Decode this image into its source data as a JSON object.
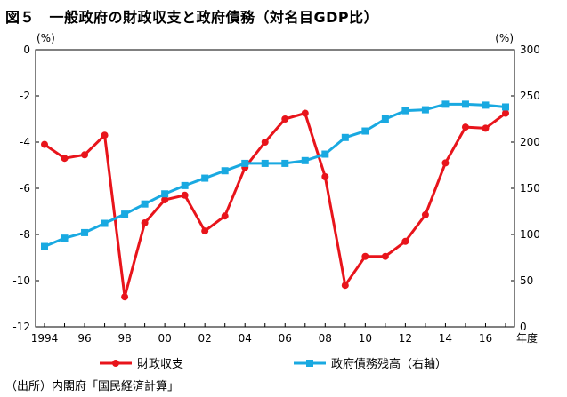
{
  "figure": {
    "title": "図５　一般政府の財政収支と政府債務（対名目GDP比）",
    "source": "（出所）内閣府「国民経済計算」"
  },
  "chart_data": {
    "type": "line",
    "x": [
      1994,
      1995,
      1996,
      1997,
      1998,
      1999,
      2000,
      2001,
      2002,
      2003,
      2004,
      2005,
      2006,
      2007,
      2008,
      2009,
      2010,
      2011,
      2012,
      2013,
      2014,
      2015,
      2016,
      2017
    ],
    "x_tick_labels": [
      "1994",
      "96",
      "98",
      "00",
      "02",
      "04",
      "06",
      "08",
      "10",
      "12",
      "14",
      "16"
    ],
    "x_unit_label": "年度",
    "left_axis": {
      "unit_label": "(%)",
      "ylim": [
        -12,
        0
      ],
      "ticks": [
        0,
        -2,
        -4,
        -6,
        -8,
        -10,
        -12
      ]
    },
    "right_axis": {
      "unit_label": "(%)",
      "ylim": [
        0,
        300
      ],
      "ticks": [
        300,
        250,
        200,
        150,
        100,
        50,
        0
      ]
    },
    "grid": false,
    "legend_position": "bottom",
    "series": [
      {
        "name": "財政収支",
        "axis": "left",
        "color": "#e8141b",
        "marker": "circle",
        "values": [
          -4.1,
          -4.7,
          -4.55,
          -3.7,
          -10.7,
          -7.5,
          -6.5,
          -6.3,
          -7.85,
          -7.2,
          -5.1,
          -4.0,
          -3.0,
          -2.75,
          -5.5,
          -10.2,
          -8.95,
          -8.95,
          -8.3,
          -7.15,
          -4.9,
          -3.35,
          -3.4,
          -2.75
        ]
      },
      {
        "name": "政府債務残高（右軸）",
        "axis": "right",
        "color": "#19a9e1",
        "marker": "square",
        "values": [
          87,
          96,
          102,
          112,
          122,
          133,
          144,
          153,
          161,
          169,
          177,
          177,
          177,
          180,
          187,
          205,
          212,
          225,
          234,
          235,
          241,
          241,
          240,
          238
        ]
      }
    ]
  }
}
